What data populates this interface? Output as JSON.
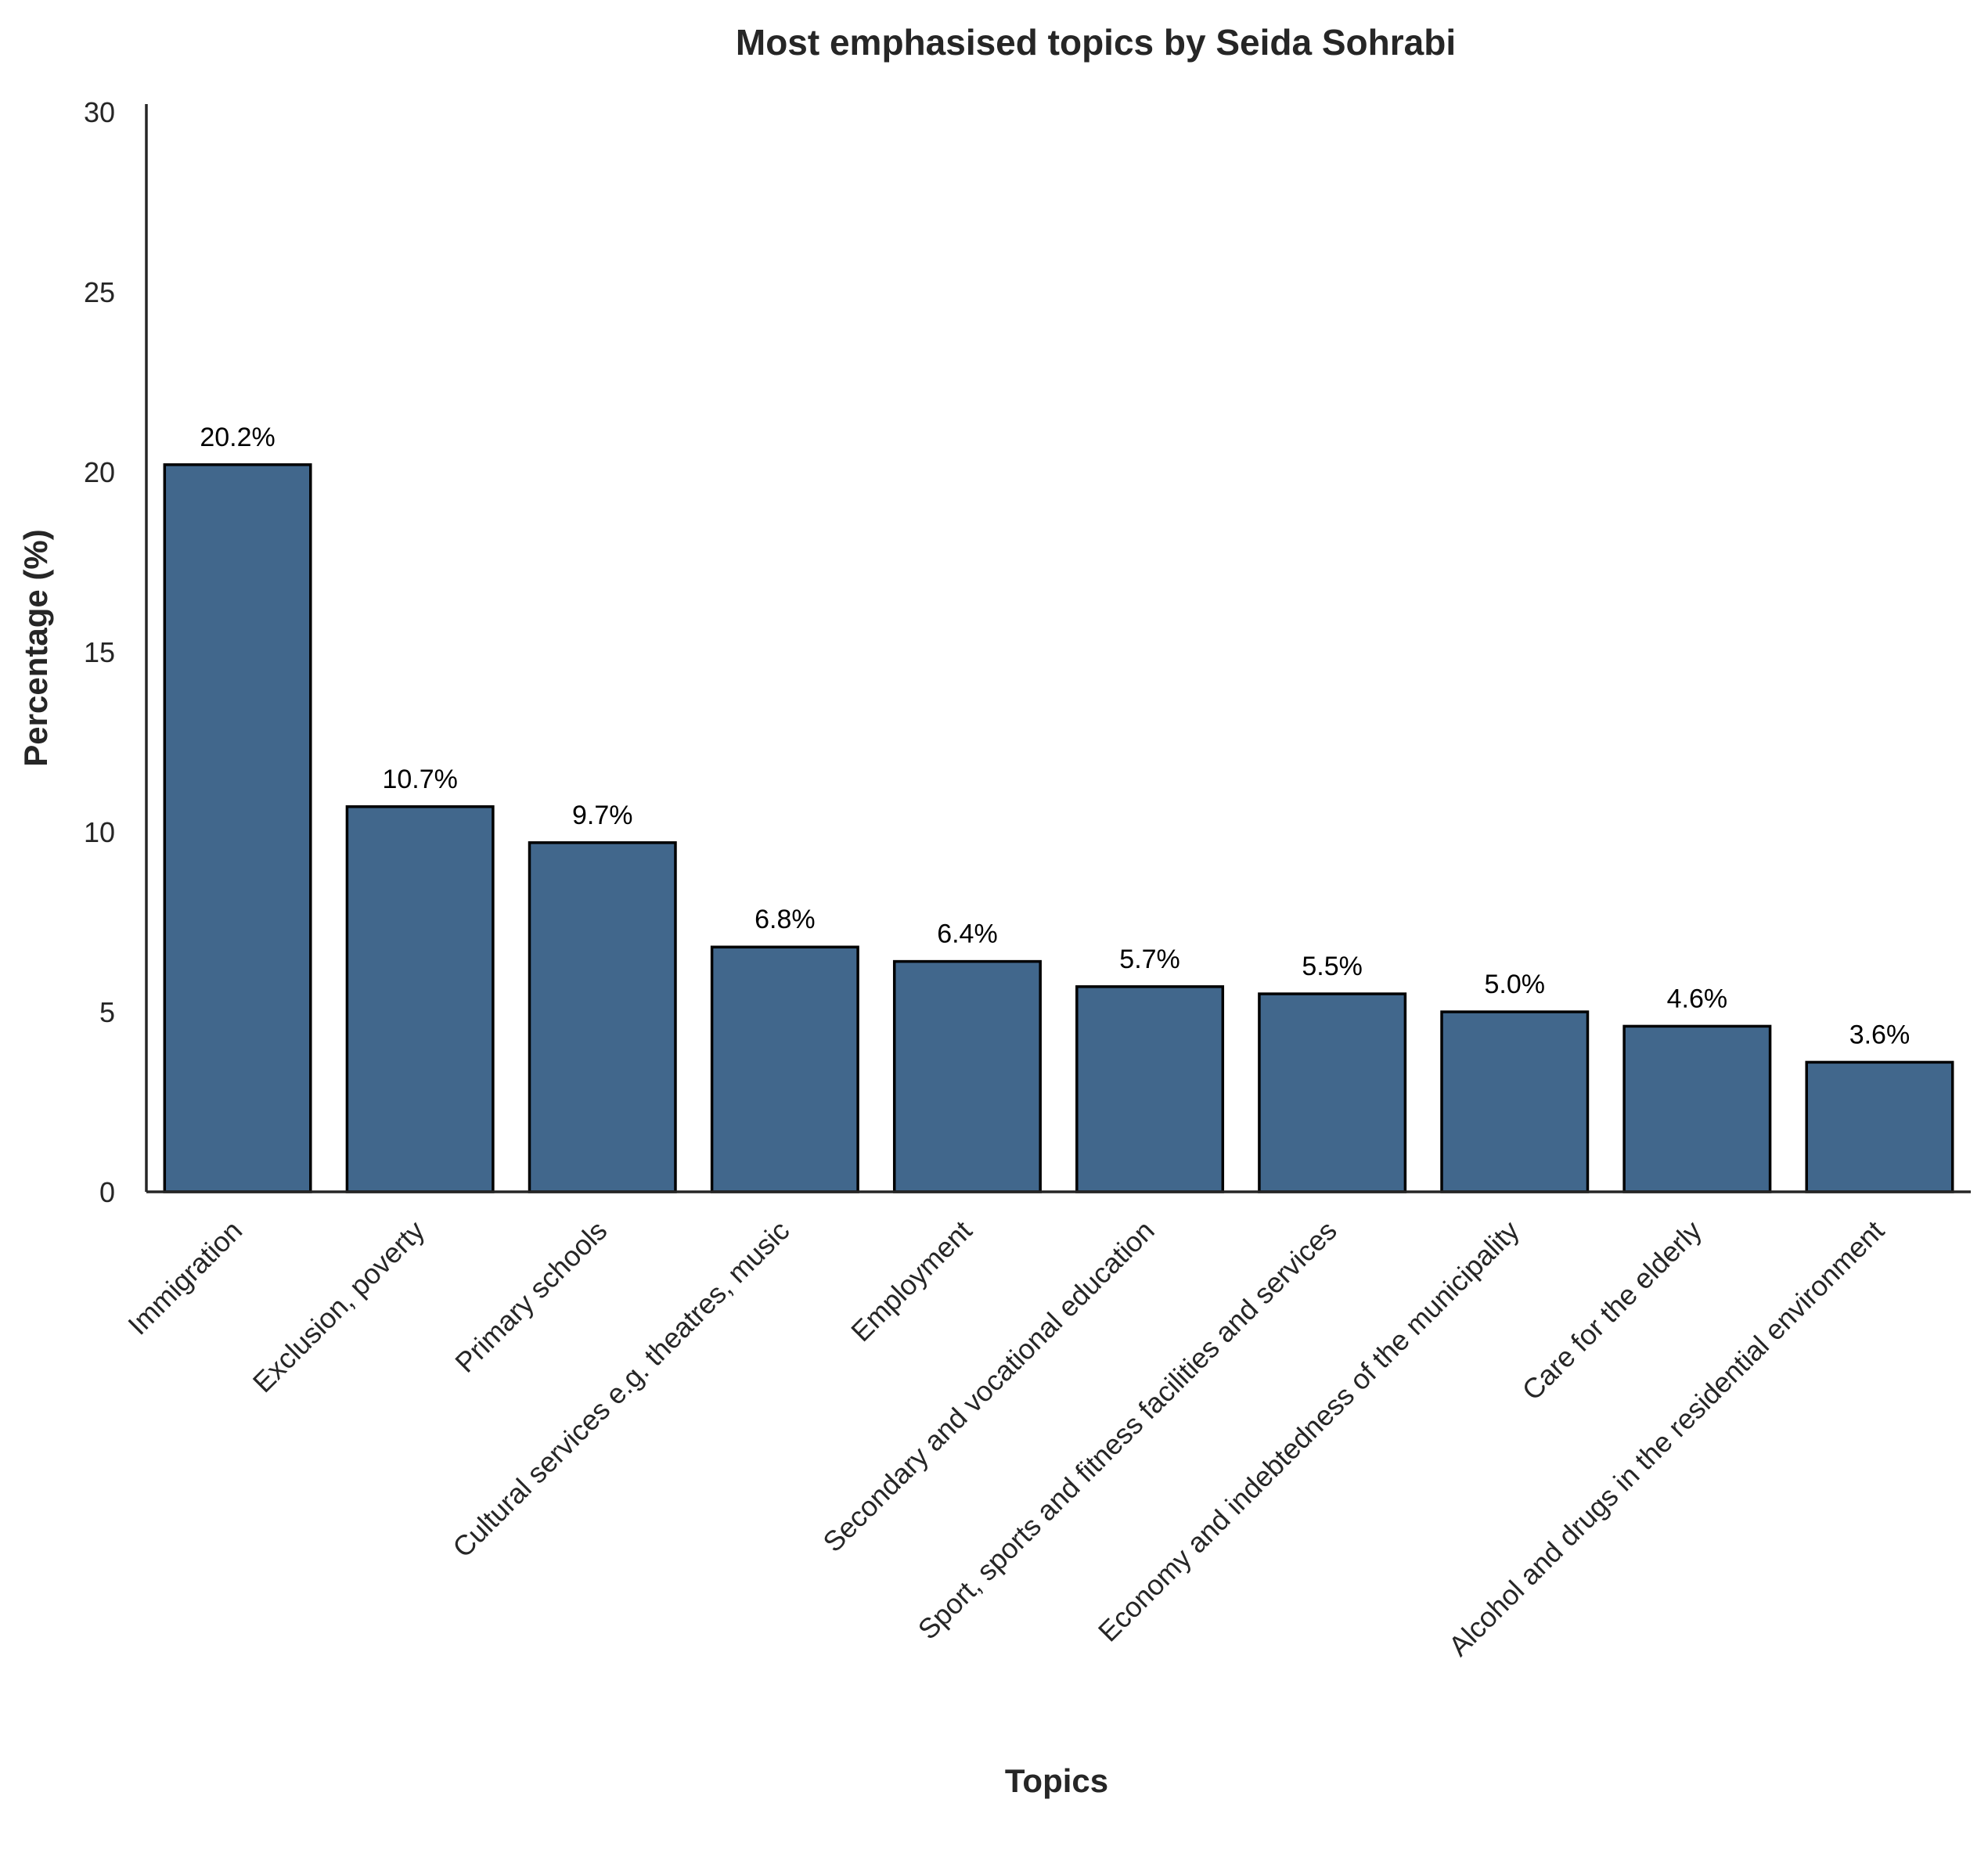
{
  "chart_data": {
    "type": "bar",
    "title": "Most emphasised topics by Seida Sohrabi",
    "xlabel": "Topics",
    "ylabel": "Percentage (%)",
    "ylim": [
      0,
      30
    ],
    "yticks": [
      0,
      5,
      10,
      15,
      20,
      25,
      30
    ],
    "categories": [
      "Immigration",
      "Exclusion, poverty",
      "Primary schools",
      "Cultural services e.g. theatres, music",
      "Employment",
      "Secondary and vocational education",
      "Sport, sports and fitness facilities and services",
      "Economy and indebtedness of the municipality",
      "Care for the elderly",
      "Alcohol and drugs in the residential environment"
    ],
    "values": [
      20.2,
      10.7,
      9.7,
      6.8,
      6.4,
      5.7,
      5.5,
      5.0,
      4.6,
      3.6
    ],
    "data_labels": [
      "20.2%",
      "10.7%",
      "9.7%",
      "6.8%",
      "6.4%",
      "5.7%",
      "5.5%",
      "5.0%",
      "4.6%",
      "3.6%"
    ],
    "bar_color": "#41678c",
    "bar_edge_color": "#000000",
    "grid": false,
    "legend": "none"
  }
}
